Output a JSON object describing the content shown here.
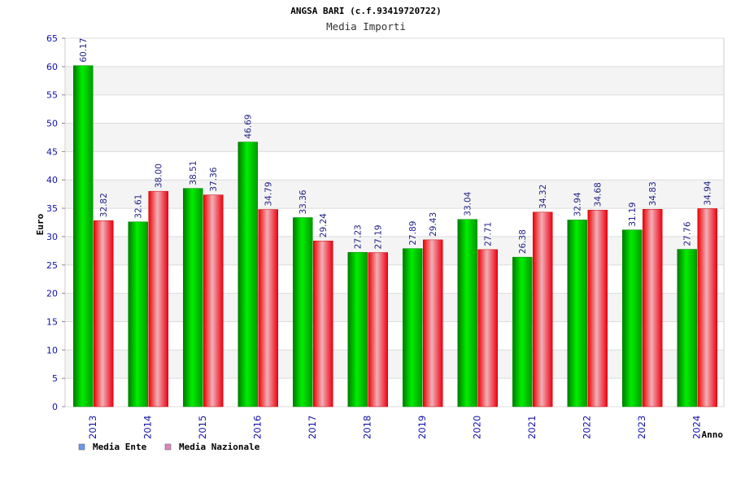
{
  "chart_data": {
    "type": "bar",
    "title": "ANGSA BARI (c.f.93419720722)",
    "subtitle": "Media Importi",
    "xlabel": "Anno",
    "ylabel": "Euro",
    "ylim": [
      0,
      65
    ],
    "ytick_step": 5,
    "grid": true,
    "legend_position": "bottom-left",
    "categories": [
      "2013",
      "2014",
      "2015",
      "2016",
      "2017",
      "2018",
      "2019",
      "2020",
      "2021",
      "2022",
      "2023",
      "2024"
    ],
    "series": [
      {
        "name": "Media Ente",
        "color": "#00cc00",
        "legend_color": "#6699ee",
        "values": [
          60.17,
          32.61,
          38.51,
          46.69,
          33.36,
          27.23,
          27.89,
          33.04,
          26.38,
          32.94,
          31.19,
          27.76
        ],
        "labels": [
          "60.17",
          "32.61",
          "38.51",
          "46.69",
          "33.36",
          "27.23",
          "27.89",
          "33.04",
          "26.38",
          "32.94",
          "31.19",
          "27.76"
        ]
      },
      {
        "name": "Media Nazionale",
        "color": "#ee1122",
        "legend_color": "#dd88bb",
        "values": [
          32.82,
          38.0,
          37.36,
          34.79,
          29.24,
          27.19,
          29.43,
          27.71,
          34.32,
          34.68,
          34.83,
          34.94
        ],
        "labels": [
          "32.82",
          "38.00",
          "37.36",
          "34.79",
          "29.24",
          "27.19",
          "29.43",
          "27.71",
          "34.32",
          "34.68",
          "34.83",
          "34.94"
        ]
      }
    ]
  },
  "colors": {
    "axis_text": "#1010aa",
    "title_text": "#000000",
    "label_text": "#222288",
    "band": "#f4f4f4",
    "grid": "#dcdcdc"
  }
}
